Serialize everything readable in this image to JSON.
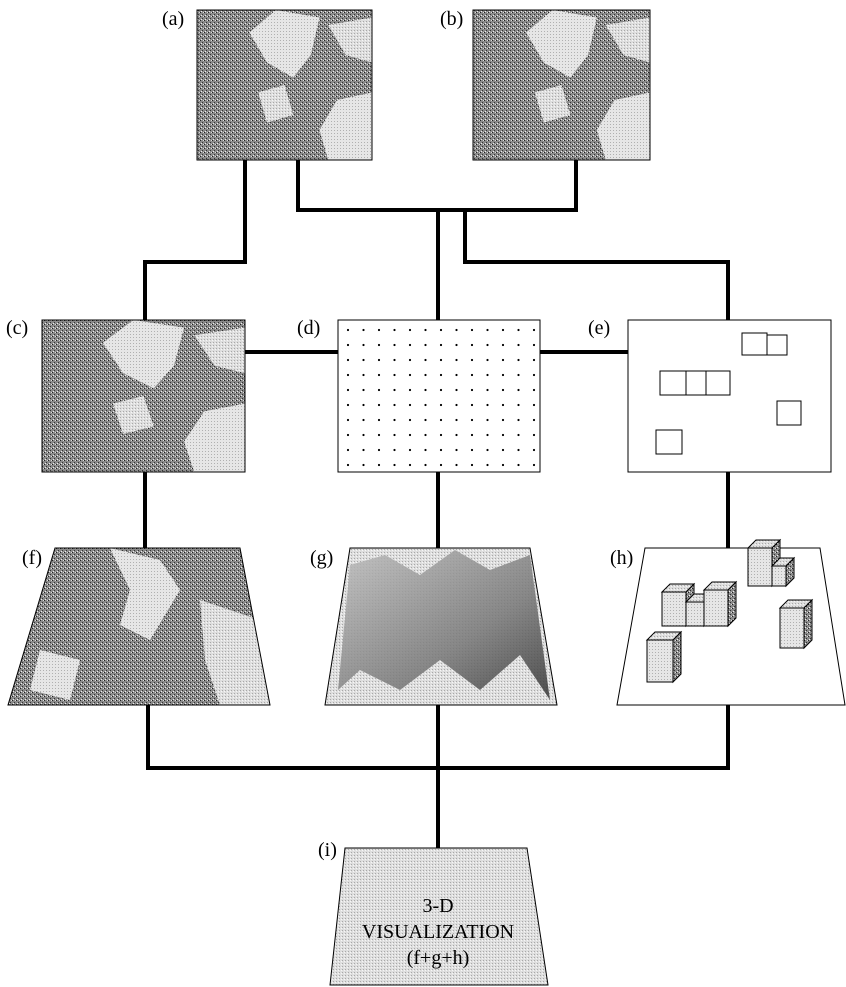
{
  "panels": [
    "(a)",
    "(b)",
    "(c)",
    "(d)",
    "(e)",
    "(f)",
    "(g)",
    "(h)",
    "(i)"
  ],
  "visualization": {
    "lines": [
      "3-D",
      "VISUALIZATION",
      "(f+g+h)"
    ]
  }
}
